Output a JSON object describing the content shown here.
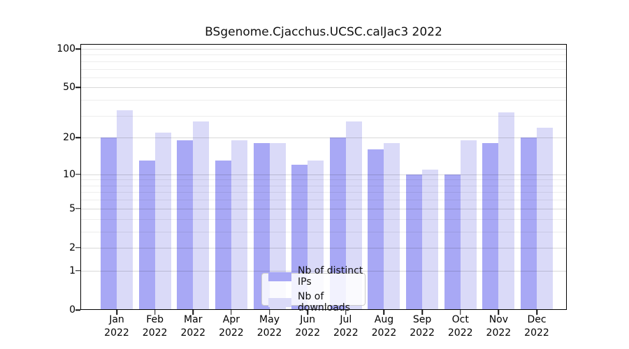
{
  "chart_data": {
    "type": "bar",
    "title": "BSgenome.Cjacchus.UCSC.calJac3 2022",
    "categories": [
      "Jan",
      "Feb",
      "Mar",
      "Apr",
      "May",
      "Jun",
      "Jul",
      "Aug",
      "Sep",
      "Oct",
      "Nov",
      "Dec"
    ],
    "x_year_label": "2022",
    "series": [
      {
        "name": "Nb of distinct IPs",
        "color": "#a8a8f5",
        "values": [
          20,
          13,
          19,
          13,
          18,
          12,
          20,
          16,
          10,
          10,
          18,
          20
        ]
      },
      {
        "name": "Nb of downloads",
        "color": "#dadaf8",
        "values": [
          33,
          22,
          27,
          19,
          18,
          13,
          27,
          18,
          11,
          19,
          32,
          24
        ]
      }
    ],
    "y_ticks": [
      0,
      1,
      2,
      5,
      10,
      20,
      50,
      100
    ],
    "y_scale": "log1p",
    "ylim": [
      0,
      100
    ],
    "xlabel": "",
    "ylabel": "",
    "grid": true,
    "legend_position": "lower center"
  }
}
